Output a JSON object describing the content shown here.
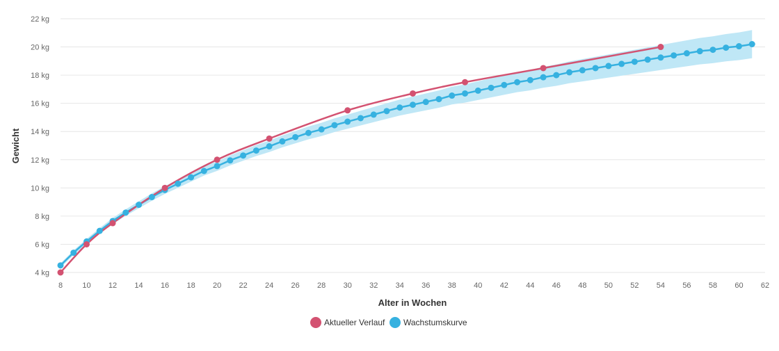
{
  "chart_data": {
    "type": "line",
    "xlabel": "Alter in Wochen",
    "ylabel": "Gewicht",
    "xlim": [
      8,
      62
    ],
    "ylim": [
      4,
      22
    ],
    "x_ticks": [
      8,
      10,
      12,
      14,
      16,
      18,
      20,
      22,
      24,
      26,
      28,
      30,
      32,
      34,
      36,
      38,
      40,
      42,
      44,
      46,
      48,
      50,
      52,
      54,
      56,
      58,
      60,
      62
    ],
    "y_ticks": [
      4,
      6,
      8,
      10,
      12,
      14,
      16,
      18,
      20,
      22
    ],
    "y_tick_suffix": " kg",
    "grid": true,
    "legend_position": "bottom-center",
    "series": [
      {
        "name": "Aktueller Verlauf",
        "color": "#d35271",
        "x": [
          8,
          10,
          12,
          16,
          20,
          24,
          30,
          35,
          39,
          45,
          54
        ],
        "y": [
          4,
          6,
          7.5,
          10,
          12,
          13.5,
          15.5,
          16.7,
          17.5,
          18.5,
          20
        ]
      },
      {
        "name": "Wachstumskurve",
        "color": "#36b1e0",
        "band_color": "#bfe7f6",
        "x": [
          8,
          9,
          10,
          11,
          12,
          13,
          14,
          15,
          16,
          17,
          18,
          19,
          20,
          21,
          22,
          23,
          24,
          25,
          26,
          27,
          28,
          29,
          30,
          31,
          32,
          33,
          34,
          35,
          36,
          37,
          38,
          39,
          40,
          41,
          42,
          43,
          44,
          45,
          46,
          47,
          48,
          49,
          50,
          51,
          52,
          53,
          54,
          55,
          56,
          57,
          58,
          59,
          60,
          61
        ],
        "y": [
          4.5,
          5.4,
          6.2,
          6.95,
          7.65,
          8.25,
          8.8,
          9.35,
          9.85,
          10.3,
          10.75,
          11.2,
          11.55,
          11.95,
          12.3,
          12.65,
          12.95,
          13.3,
          13.6,
          13.9,
          14.15,
          14.45,
          14.7,
          14.95,
          15.2,
          15.45,
          15.7,
          15.9,
          16.1,
          16.3,
          16.55,
          16.7,
          16.9,
          17.1,
          17.3,
          17.5,
          17.65,
          17.85,
          18.0,
          18.2,
          18.35,
          18.5,
          18.65,
          18.8,
          18.95,
          19.1,
          19.25,
          19.4,
          19.55,
          19.7,
          19.8,
          19.95,
          20.05,
          20.2
        ],
        "band_halfwidth_start": 0.15,
        "band_halfwidth_end": 1.0
      }
    ]
  }
}
